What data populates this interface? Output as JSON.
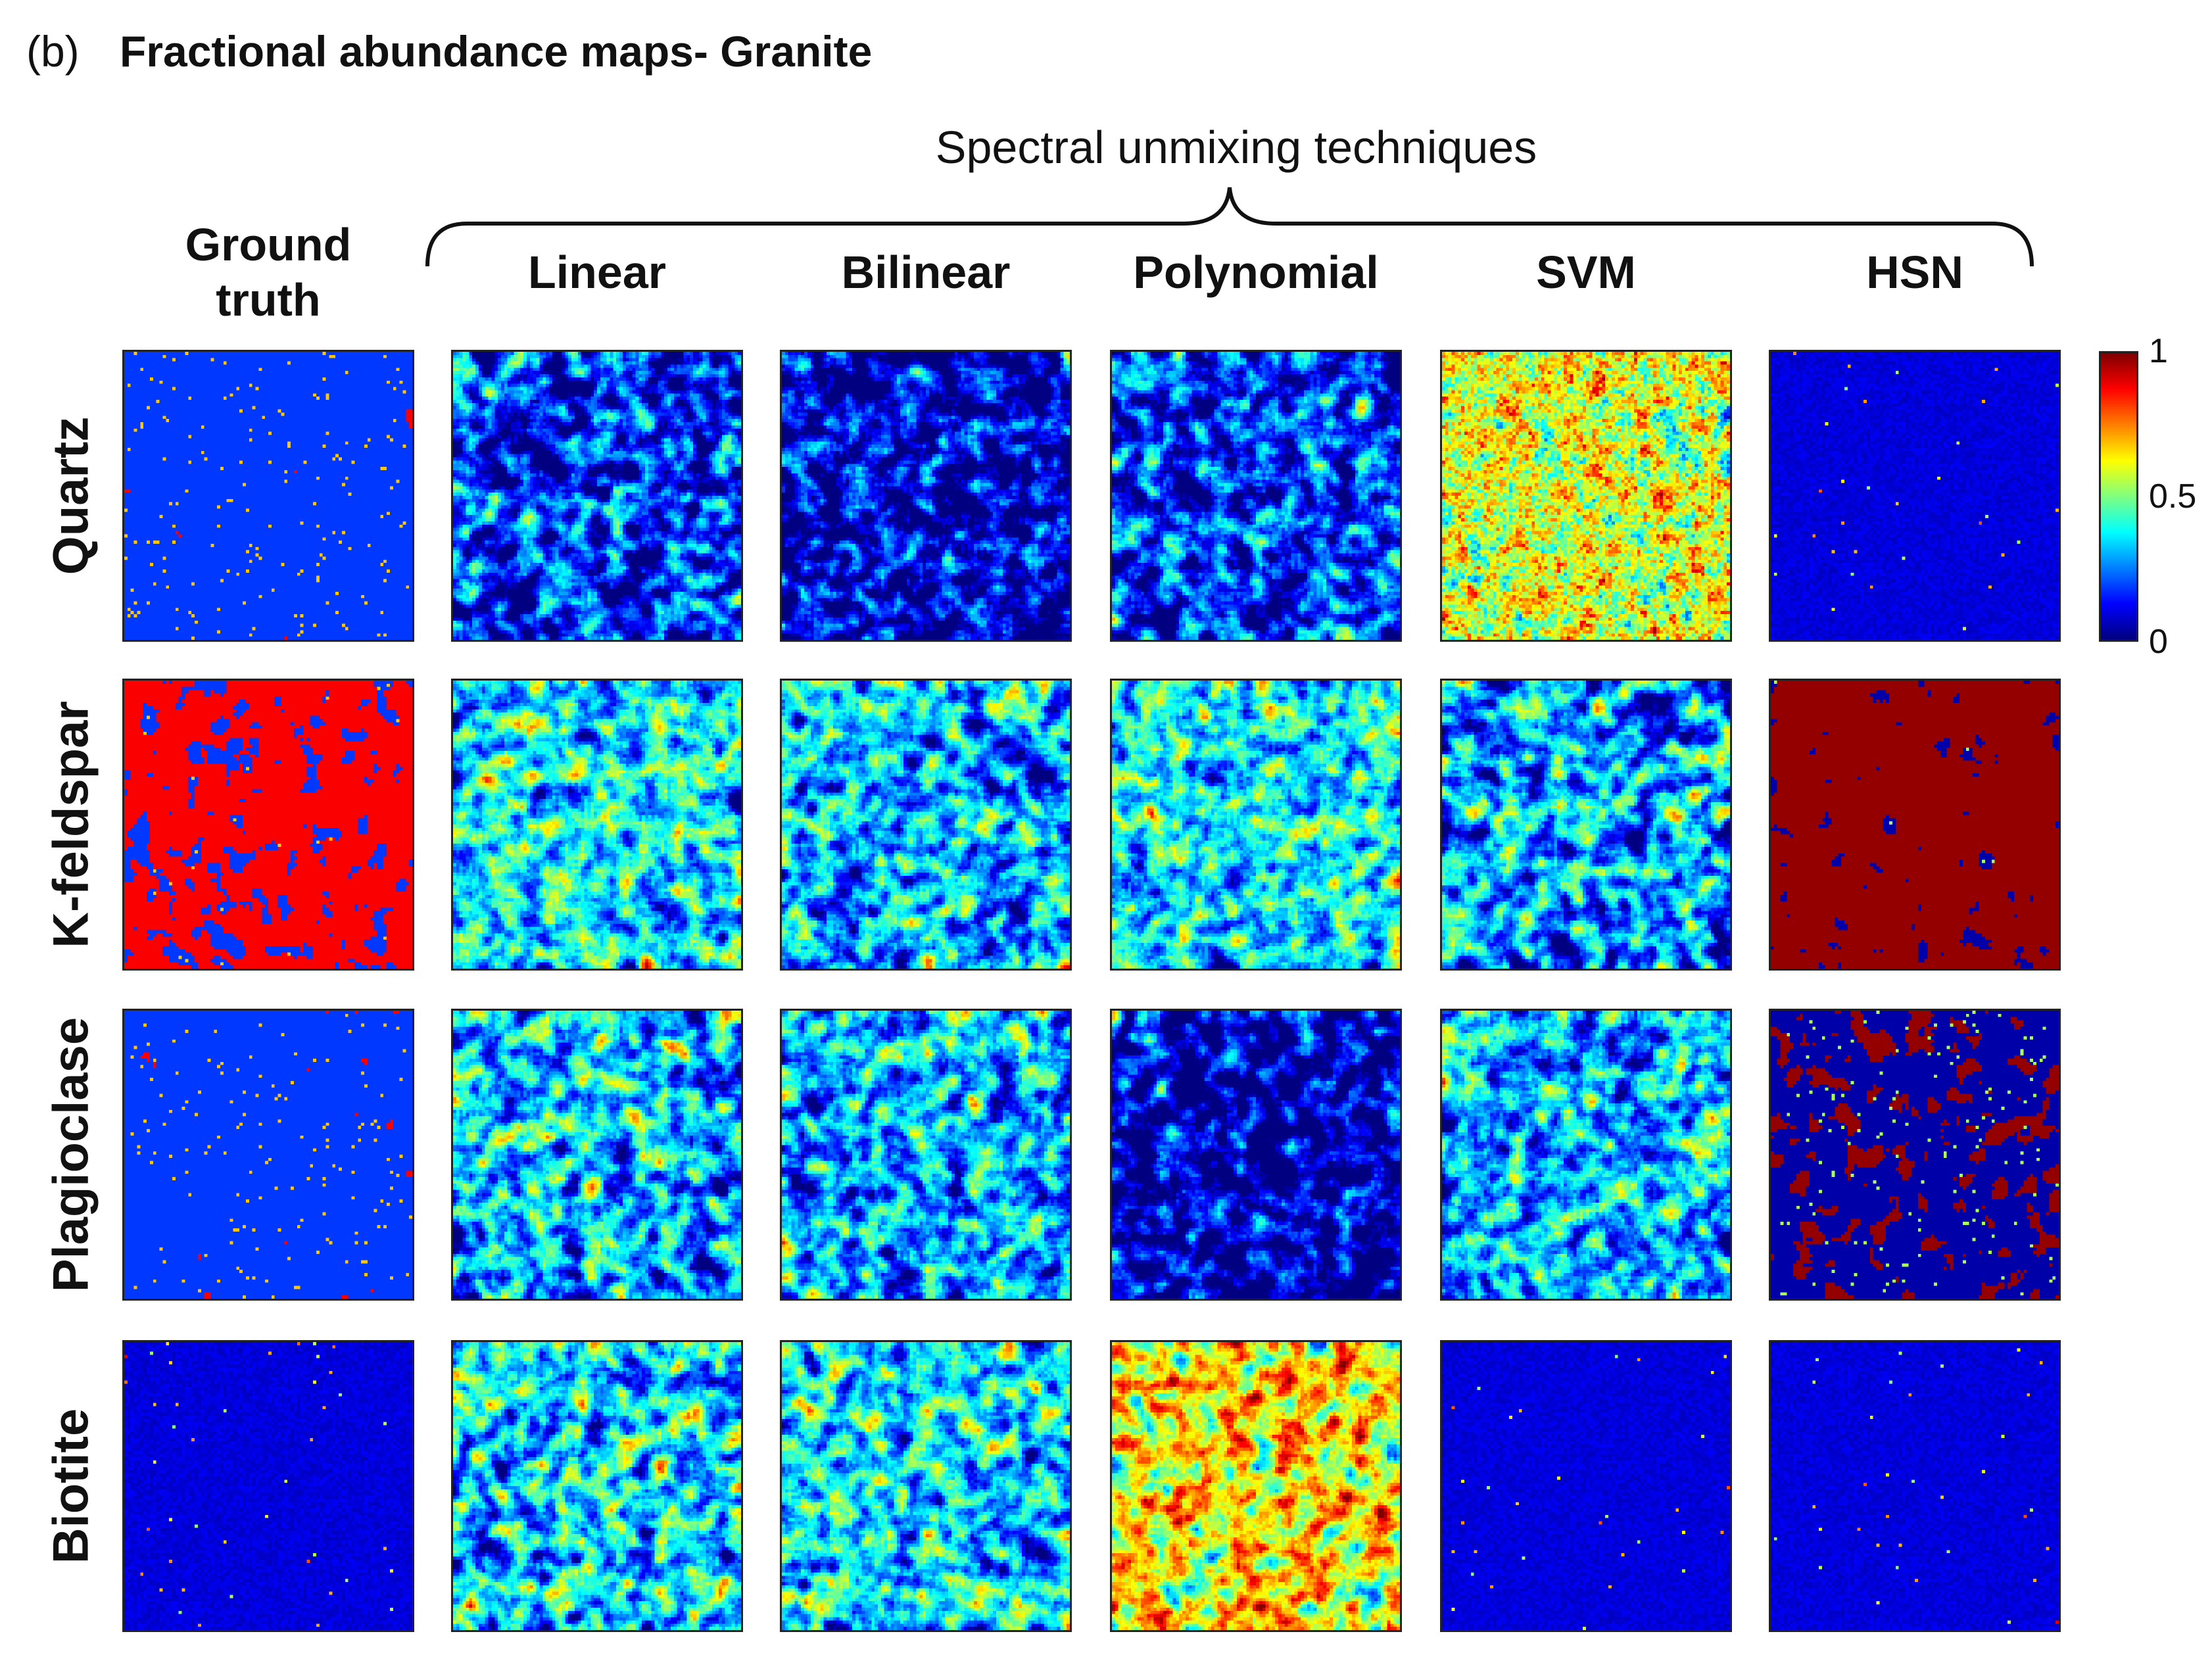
{
  "figure": {
    "panel_label": "(b)",
    "title": "Fractional abundance maps- Granite",
    "group_label": "Spectral unmixing techniques"
  },
  "columns": [
    {
      "key": "gt",
      "label": "Ground truth",
      "label_lines": [
        "Ground",
        "truth"
      ]
    },
    {
      "key": "linear",
      "label": "Linear",
      "label_lines": [
        "Linear"
      ]
    },
    {
      "key": "bilinear",
      "label": "Bilinear",
      "label_lines": [
        "Bilinear"
      ]
    },
    {
      "key": "polynomial",
      "label": "Polynomial",
      "label_lines": [
        "Polynomial"
      ]
    },
    {
      "key": "svm",
      "label": "SVM",
      "label_lines": [
        "SVM"
      ]
    },
    {
      "key": "hsn",
      "label": "HSN",
      "label_lines": [
        "HSN"
      ]
    }
  ],
  "rows": [
    {
      "key": "quartz",
      "label": "Quartz"
    },
    {
      "key": "kfeldspar",
      "label": "K-feldspar"
    },
    {
      "key": "plagioclase",
      "label": "Plagioclase"
    },
    {
      "key": "biotite",
      "label": "Biotite"
    }
  ],
  "colorbar": {
    "colormap": "jet",
    "min": 0,
    "max": 1,
    "ticks": [
      {
        "value": 1,
        "label": "1"
      },
      {
        "value": 0.5,
        "label": "0.5"
      },
      {
        "value": 0,
        "label": "0"
      }
    ]
  },
  "chart_data": {
    "type": "heatmap",
    "title": "Fractional abundance maps- Granite",
    "grid_size": 90,
    "value_range": [
      0,
      1
    ],
    "panels": {
      "quartz": {
        "gt": {
          "style": "gt",
          "fill": 0.18,
          "seed": 11
        },
        "linear": {
          "style": "smooth",
          "mean": 0.12,
          "spread": 0.55,
          "seed": 21
        },
        "bilinear": {
          "style": "smooth",
          "mean": 0.12,
          "spread": 0.6,
          "seed": 22
        },
        "polynomial": {
          "style": "smooth",
          "mean": 0.11,
          "spread": 0.55,
          "seed": 23
        },
        "svm": {
          "style": "noisy",
          "mean": 0.6,
          "spread": 0.35,
          "seed": 24
        },
        "hsn": {
          "style": "sparse",
          "fill": 0.12,
          "seed": 25
        }
      },
      "kfeldspar": {
        "gt": {
          "style": "gt",
          "fill": 0.62,
          "seed": 31
        },
        "linear": {
          "style": "smooth",
          "mean": 0.35,
          "spread": 0.6,
          "seed": 32
        },
        "bilinear": {
          "style": "smooth",
          "mean": 0.35,
          "spread": 0.6,
          "seed": 33
        },
        "polynomial": {
          "style": "smooth",
          "mean": 0.38,
          "spread": 0.6,
          "seed": 34
        },
        "svm": {
          "style": "smooth",
          "mean": 0.22,
          "spread": 0.6,
          "seed": 35
        },
        "hsn": {
          "style": "gtdark",
          "fill": 0.68,
          "seed": 36
        }
      },
      "plagioclase": {
        "gt": {
          "style": "gt",
          "fill": 0.2,
          "seed": 41
        },
        "linear": {
          "style": "smooth",
          "mean": 0.3,
          "spread": 0.55,
          "seed": 42
        },
        "bilinear": {
          "style": "smooth",
          "mean": 0.3,
          "spread": 0.55,
          "seed": 43
        },
        "polynomial": {
          "style": "smooth",
          "mean": 0.1,
          "spread": 0.55,
          "seed": 44
        },
        "svm": {
          "style": "smooth",
          "mean": 0.25,
          "spread": 0.55,
          "seed": 45
        },
        "hsn": {
          "style": "gtdark",
          "fill": 0.42,
          "seed": 46
        }
      },
      "biotite": {
        "gt": {
          "style": "sparse",
          "fill": 0.1,
          "seed": 51
        },
        "linear": {
          "style": "smooth",
          "mean": 0.32,
          "spread": 0.55,
          "seed": 52
        },
        "bilinear": {
          "style": "smooth",
          "mean": 0.28,
          "spread": 0.55,
          "seed": 53
        },
        "polynomial": {
          "style": "smooth",
          "mean": 0.58,
          "spread": 0.55,
          "seed": 54
        },
        "svm": {
          "style": "sparse",
          "fill": 0.06,
          "seed": 55
        },
        "hsn": {
          "style": "sparse",
          "fill": 0.05,
          "seed": 56
        }
      }
    }
  }
}
